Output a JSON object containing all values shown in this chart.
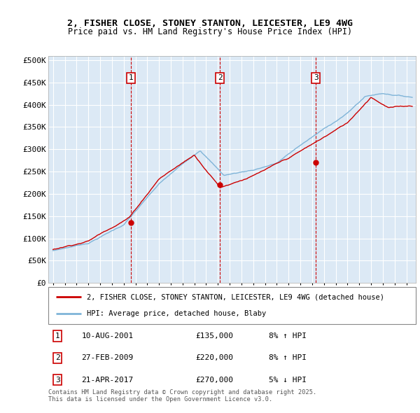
{
  "title_line1": "2, FISHER CLOSE, STONEY STANTON, LEICESTER, LE9 4WG",
  "title_line2": "Price paid vs. HM Land Registry's House Price Index (HPI)",
  "ytick_values": [
    0,
    50000,
    100000,
    150000,
    200000,
    250000,
    300000,
    350000,
    400000,
    450000,
    500000
  ],
  "xlim": [
    1994.6,
    2025.8
  ],
  "ylim": [
    0,
    510000
  ],
  "background_color": "#dce9f5",
  "grid_color": "#ffffff",
  "red_line_color": "#cc0000",
  "blue_line_color": "#7fb4d8",
  "purchase_markers": [
    {
      "label": "1",
      "year": 2001.61,
      "value": 135000
    },
    {
      "label": "2",
      "year": 2009.16,
      "value": 220000
    },
    {
      "label": "3",
      "year": 2017.31,
      "value": 270000
    }
  ],
  "legend_label_red": "2, FISHER CLOSE, STONEY STANTON, LEICESTER, LE9 4WG (detached house)",
  "legend_label_blue": "HPI: Average price, detached house, Blaby",
  "footnote": "Contains HM Land Registry data © Crown copyright and database right 2025.\nThis data is licensed under the Open Government Licence v3.0.",
  "table_rows": [
    {
      "num": "1",
      "date": "10-AUG-2001",
      "price": "£135,000",
      "pct": "8% ↑ HPI"
    },
    {
      "num": "2",
      "date": "27-FEB-2009",
      "price": "£220,000",
      "pct": "8% ↑ HPI"
    },
    {
      "num": "3",
      "date": "21-APR-2017",
      "price": "£270,000",
      "pct": "5% ↓ HPI"
    }
  ]
}
